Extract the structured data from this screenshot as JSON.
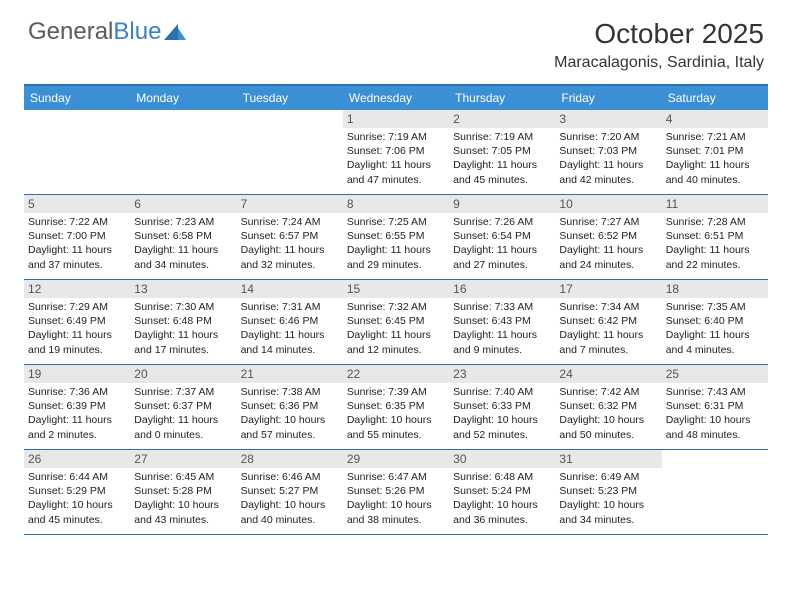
{
  "logo": {
    "text1": "General",
    "text2": "Blue"
  },
  "title": "October 2025",
  "location": "Maracalagonis, Sardinia, Italy",
  "colors": {
    "header_bg": "#3b8fd4",
    "border": "#2e6fb0",
    "daybar": "#e8e8e8",
    "logo_gray": "#5a5a5a",
    "logo_blue": "#3b7fc4"
  },
  "day_names": [
    "Sunday",
    "Monday",
    "Tuesday",
    "Wednesday",
    "Thursday",
    "Friday",
    "Saturday"
  ],
  "weeks": [
    [
      {
        "n": "",
        "sr": "",
        "ss": "",
        "dl": ""
      },
      {
        "n": "",
        "sr": "",
        "ss": "",
        "dl": ""
      },
      {
        "n": "",
        "sr": "",
        "ss": "",
        "dl": ""
      },
      {
        "n": "1",
        "sr": "Sunrise: 7:19 AM",
        "ss": "Sunset: 7:06 PM",
        "dl": "Daylight: 11 hours and 47 minutes."
      },
      {
        "n": "2",
        "sr": "Sunrise: 7:19 AM",
        "ss": "Sunset: 7:05 PM",
        "dl": "Daylight: 11 hours and 45 minutes."
      },
      {
        "n": "3",
        "sr": "Sunrise: 7:20 AM",
        "ss": "Sunset: 7:03 PM",
        "dl": "Daylight: 11 hours and 42 minutes."
      },
      {
        "n": "4",
        "sr": "Sunrise: 7:21 AM",
        "ss": "Sunset: 7:01 PM",
        "dl": "Daylight: 11 hours and 40 minutes."
      }
    ],
    [
      {
        "n": "5",
        "sr": "Sunrise: 7:22 AM",
        "ss": "Sunset: 7:00 PM",
        "dl": "Daylight: 11 hours and 37 minutes."
      },
      {
        "n": "6",
        "sr": "Sunrise: 7:23 AM",
        "ss": "Sunset: 6:58 PM",
        "dl": "Daylight: 11 hours and 34 minutes."
      },
      {
        "n": "7",
        "sr": "Sunrise: 7:24 AM",
        "ss": "Sunset: 6:57 PM",
        "dl": "Daylight: 11 hours and 32 minutes."
      },
      {
        "n": "8",
        "sr": "Sunrise: 7:25 AM",
        "ss": "Sunset: 6:55 PM",
        "dl": "Daylight: 11 hours and 29 minutes."
      },
      {
        "n": "9",
        "sr": "Sunrise: 7:26 AM",
        "ss": "Sunset: 6:54 PM",
        "dl": "Daylight: 11 hours and 27 minutes."
      },
      {
        "n": "10",
        "sr": "Sunrise: 7:27 AM",
        "ss": "Sunset: 6:52 PM",
        "dl": "Daylight: 11 hours and 24 minutes."
      },
      {
        "n": "11",
        "sr": "Sunrise: 7:28 AM",
        "ss": "Sunset: 6:51 PM",
        "dl": "Daylight: 11 hours and 22 minutes."
      }
    ],
    [
      {
        "n": "12",
        "sr": "Sunrise: 7:29 AM",
        "ss": "Sunset: 6:49 PM",
        "dl": "Daylight: 11 hours and 19 minutes."
      },
      {
        "n": "13",
        "sr": "Sunrise: 7:30 AM",
        "ss": "Sunset: 6:48 PM",
        "dl": "Daylight: 11 hours and 17 minutes."
      },
      {
        "n": "14",
        "sr": "Sunrise: 7:31 AM",
        "ss": "Sunset: 6:46 PM",
        "dl": "Daylight: 11 hours and 14 minutes."
      },
      {
        "n": "15",
        "sr": "Sunrise: 7:32 AM",
        "ss": "Sunset: 6:45 PM",
        "dl": "Daylight: 11 hours and 12 minutes."
      },
      {
        "n": "16",
        "sr": "Sunrise: 7:33 AM",
        "ss": "Sunset: 6:43 PM",
        "dl": "Daylight: 11 hours and 9 minutes."
      },
      {
        "n": "17",
        "sr": "Sunrise: 7:34 AM",
        "ss": "Sunset: 6:42 PM",
        "dl": "Daylight: 11 hours and 7 minutes."
      },
      {
        "n": "18",
        "sr": "Sunrise: 7:35 AM",
        "ss": "Sunset: 6:40 PM",
        "dl": "Daylight: 11 hours and 4 minutes."
      }
    ],
    [
      {
        "n": "19",
        "sr": "Sunrise: 7:36 AM",
        "ss": "Sunset: 6:39 PM",
        "dl": "Daylight: 11 hours and 2 minutes."
      },
      {
        "n": "20",
        "sr": "Sunrise: 7:37 AM",
        "ss": "Sunset: 6:37 PM",
        "dl": "Daylight: 11 hours and 0 minutes."
      },
      {
        "n": "21",
        "sr": "Sunrise: 7:38 AM",
        "ss": "Sunset: 6:36 PM",
        "dl": "Daylight: 10 hours and 57 minutes."
      },
      {
        "n": "22",
        "sr": "Sunrise: 7:39 AM",
        "ss": "Sunset: 6:35 PM",
        "dl": "Daylight: 10 hours and 55 minutes."
      },
      {
        "n": "23",
        "sr": "Sunrise: 7:40 AM",
        "ss": "Sunset: 6:33 PM",
        "dl": "Daylight: 10 hours and 52 minutes."
      },
      {
        "n": "24",
        "sr": "Sunrise: 7:42 AM",
        "ss": "Sunset: 6:32 PM",
        "dl": "Daylight: 10 hours and 50 minutes."
      },
      {
        "n": "25",
        "sr": "Sunrise: 7:43 AM",
        "ss": "Sunset: 6:31 PM",
        "dl": "Daylight: 10 hours and 48 minutes."
      }
    ],
    [
      {
        "n": "26",
        "sr": "Sunrise: 6:44 AM",
        "ss": "Sunset: 5:29 PM",
        "dl": "Daylight: 10 hours and 45 minutes."
      },
      {
        "n": "27",
        "sr": "Sunrise: 6:45 AM",
        "ss": "Sunset: 5:28 PM",
        "dl": "Daylight: 10 hours and 43 minutes."
      },
      {
        "n": "28",
        "sr": "Sunrise: 6:46 AM",
        "ss": "Sunset: 5:27 PM",
        "dl": "Daylight: 10 hours and 40 minutes."
      },
      {
        "n": "29",
        "sr": "Sunrise: 6:47 AM",
        "ss": "Sunset: 5:26 PM",
        "dl": "Daylight: 10 hours and 38 minutes."
      },
      {
        "n": "30",
        "sr": "Sunrise: 6:48 AM",
        "ss": "Sunset: 5:24 PM",
        "dl": "Daylight: 10 hours and 36 minutes."
      },
      {
        "n": "31",
        "sr": "Sunrise: 6:49 AM",
        "ss": "Sunset: 5:23 PM",
        "dl": "Daylight: 10 hours and 34 minutes."
      },
      {
        "n": "",
        "sr": "",
        "ss": "",
        "dl": ""
      }
    ]
  ]
}
